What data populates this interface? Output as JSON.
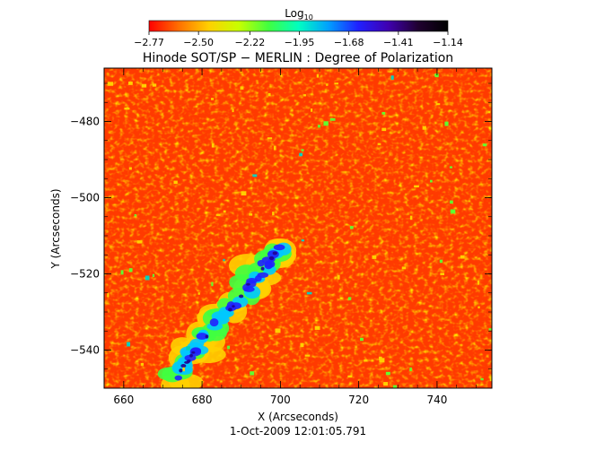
{
  "chart_data": {
    "type": "heatmap",
    "title": "Hinode SOT/SP − MERLIN : Degree of Polarization",
    "xlabel": "X (Arcseconds)",
    "ylabel": "Y (Arcseconds)",
    "xlim": [
      655,
      754
    ],
    "ylim": [
      -550,
      -466
    ],
    "x_ticks": [
      660,
      680,
      700,
      720,
      740
    ],
    "x_tick_labels": [
      "660",
      "680",
      "700",
      "720",
      "740"
    ],
    "y_ticks": [
      -480,
      -500,
      -520,
      -540
    ],
    "y_tick_labels": [
      "−480",
      "−500",
      "−520",
      "−540"
    ],
    "colorbar": {
      "label_base": "Log",
      "label_sub": "10",
      "range": [
        -2.77,
        -1.14
      ],
      "ticks": [
        -2.77,
        -2.5,
        -2.22,
        -1.95,
        -1.68,
        -1.41,
        -1.14
      ],
      "tick_labels": [
        "−2.77",
        "−2.50",
        "−2.22",
        "−1.95",
        "−1.68",
        "−1.41",
        "−1.14"
      ],
      "colormap": [
        "#ff0000",
        "#ff7000",
        "#ffd000",
        "#c8ff00",
        "#40ff40",
        "#00ffc0",
        "#00a0ff",
        "#2020ff",
        "#4000b0",
        "#200030",
        "#000000"
      ]
    },
    "background_value": -2.72,
    "features": [
      {
        "name": "polarized lane",
        "value_range": [
          -2.0,
          -1.55
        ],
        "path_x": [
          673,
          678,
          684,
          690,
          695,
          700
        ],
        "path_y": [
          -548,
          -540,
          -533,
          -526,
          -519,
          -513
        ]
      }
    ],
    "date_label": "1-Oct-2009  12:01:05.791"
  }
}
